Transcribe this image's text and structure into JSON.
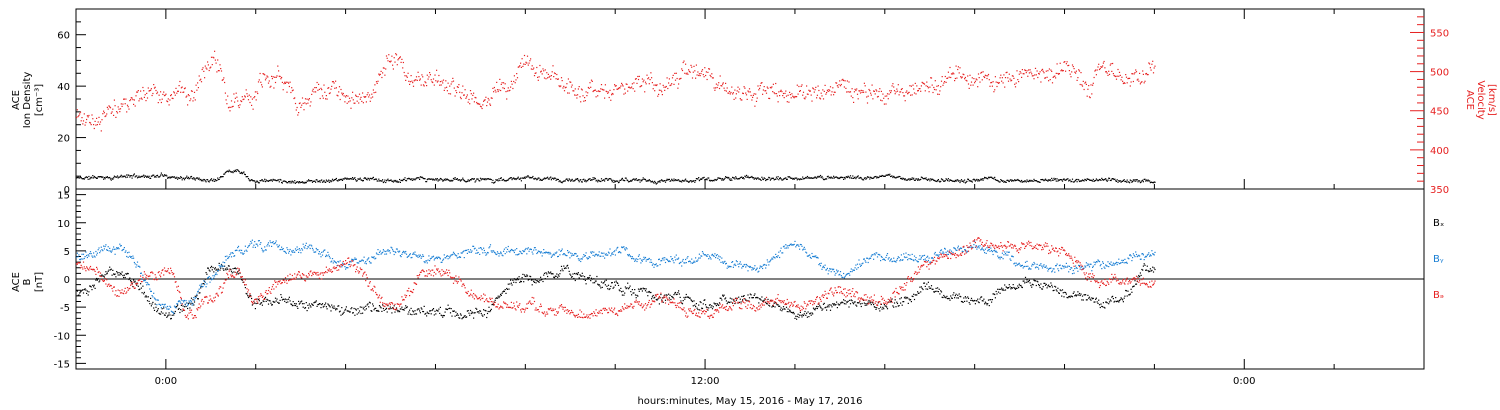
{
  "xlabel": "hours:minutes, May 15, 2016 - May 17, 2016",
  "x_ticks": [
    "0:00",
    "12:00",
    "0:00"
  ],
  "chart_data": [
    {
      "type": "scatter",
      "panel": "top",
      "ylabel_lines": [
        "ACE",
        "Ion Density",
        "[cm⁻³]"
      ],
      "ylim": [
        0,
        70
      ],
      "yticks": [
        "0",
        "20",
        "40",
        "60"
      ],
      "y2label_lines": [
        "ACE",
        "Velocity",
        "[km/s]"
      ],
      "y2lim": [
        350,
        580
      ],
      "y2ticks": [
        "350",
        "400",
        "450",
        "500",
        "550"
      ],
      "x_unit": "hours relative to 0:00 May 16, 2016",
      "xlim": [
        -2,
        28
      ],
      "data_end_hour": 22,
      "series": [
        {
          "axis": "left",
          "color": "#000000",
          "knots_x": [
            -2,
            -1,
            0,
            0.5,
            1,
            1.4,
            1.6,
            2,
            3,
            4,
            5,
            6,
            7,
            8,
            9,
            10,
            11,
            12,
            13,
            14,
            15,
            16,
            17,
            18,
            19,
            20,
            21,
            22
          ],
          "knots_y": [
            4.5,
            5,
            5.5,
            4.5,
            4,
            7.5,
            8,
            4,
            3.5,
            4,
            3.5,
            3.5,
            4,
            4,
            3.5,
            3.5,
            3.5,
            4,
            4.5,
            4,
            5,
            4.5,
            4,
            3.5,
            3.5,
            3.5,
            3.5,
            3.5
          ],
          "noise": 1.0
        },
        {
          "axis": "right",
          "color": "#e62020",
          "knots_x": [
            -2,
            -1.5,
            -1,
            -0.5,
            0,
            0.5,
            1,
            1.5,
            2,
            2.5,
            3,
            3.5,
            4,
            4.5,
            5,
            5.5,
            6,
            6.5,
            7,
            7.5,
            8,
            8.5,
            9,
            9.5,
            10,
            10.5,
            11,
            11.5,
            12,
            12.5,
            13,
            13.5,
            14,
            14.5,
            15,
            15.5,
            16,
            16.5,
            17,
            17.5,
            18,
            18.5,
            19,
            19.5,
            20,
            20.5,
            21,
            21.5,
            22
          ],
          "knots_y": [
            445,
            448,
            460,
            470,
            475,
            480,
            520,
            465,
            480,
            490,
            465,
            480,
            470,
            475,
            520,
            485,
            480,
            475,
            475,
            478,
            505,
            495,
            475,
            478,
            480,
            485,
            480,
            490,
            485,
            478,
            480,
            475,
            468,
            480,
            475,
            470,
            470,
            478,
            488,
            492,
            500,
            482,
            495,
            505,
            510,
            492,
            490,
            495,
            500
          ],
          "noise": 16
        }
      ]
    },
    {
      "type": "scatter",
      "panel": "bottom",
      "ylabel_lines": [
        "ACE",
        "B",
        "[nT]"
      ],
      "ylim": [
        -16,
        16
      ],
      "yticks": [
        "-15",
        "-10",
        "-5",
        "0",
        "5",
        "10",
        "15"
      ],
      "x_unit": "hours relative to 0:00 May 16, 2016",
      "xlim": [
        -2,
        28
      ],
      "data_end_hour": 22,
      "legend": [
        "Bₓ",
        "Bᵧ",
        "Bₔ"
      ],
      "series": [
        {
          "name": "Bₓ",
          "color": "#000000",
          "knots_x": [
            -2,
            -1,
            0,
            0.5,
            1,
            1.5,
            2,
            3,
            4,
            5,
            6,
            7,
            8,
            9,
            10,
            11,
            12,
            13,
            14,
            15,
            16,
            17,
            18,
            19,
            20,
            21,
            22
          ],
          "knots_y": [
            -2,
            2,
            -6,
            -5,
            1,
            2,
            -4,
            -4.5,
            -5,
            -5.5,
            -6,
            -5.5,
            0,
            1,
            -1,
            -3,
            -4,
            -3,
            -6,
            -4,
            -5,
            -2,
            -4,
            -1,
            -2,
            -4,
            2
          ],
          "noise": 1.2
        },
        {
          "name": "Bᵧ",
          "color": "#1a7fd4",
          "knots_x": [
            -2,
            -1,
            0,
            0.5,
            1,
            1.5,
            2,
            3,
            4,
            5,
            6,
            7,
            8,
            9,
            10,
            11,
            12,
            13,
            14,
            15,
            16,
            17,
            18,
            19,
            20,
            21,
            22
          ],
          "knots_y": [
            4,
            6,
            -5,
            -3,
            0,
            5,
            6,
            5,
            3,
            5,
            4,
            5,
            5,
            4,
            5,
            3,
            4,
            2,
            6,
            1,
            4,
            4,
            6,
            3,
            2,
            3,
            5
          ],
          "noise": 1.1
        },
        {
          "name": "Bₔ",
          "color": "#e62020",
          "knots_x": [
            -2,
            -1,
            0,
            0.5,
            1,
            1.5,
            2,
            3,
            4,
            5,
            6,
            7,
            8,
            9,
            10,
            11,
            12,
            13,
            14,
            15,
            16,
            17,
            18,
            19,
            20,
            21,
            22
          ],
          "knots_y": [
            3,
            -2,
            2,
            -6,
            -3,
            1,
            -3,
            1,
            2,
            -4,
            2,
            -4,
            -5,
            -6,
            -5,
            -4,
            -6,
            -5,
            -4,
            -2,
            -3,
            3,
            6,
            6,
            5,
            -1,
            -1
          ],
          "noise": 1.3
        }
      ]
    }
  ]
}
